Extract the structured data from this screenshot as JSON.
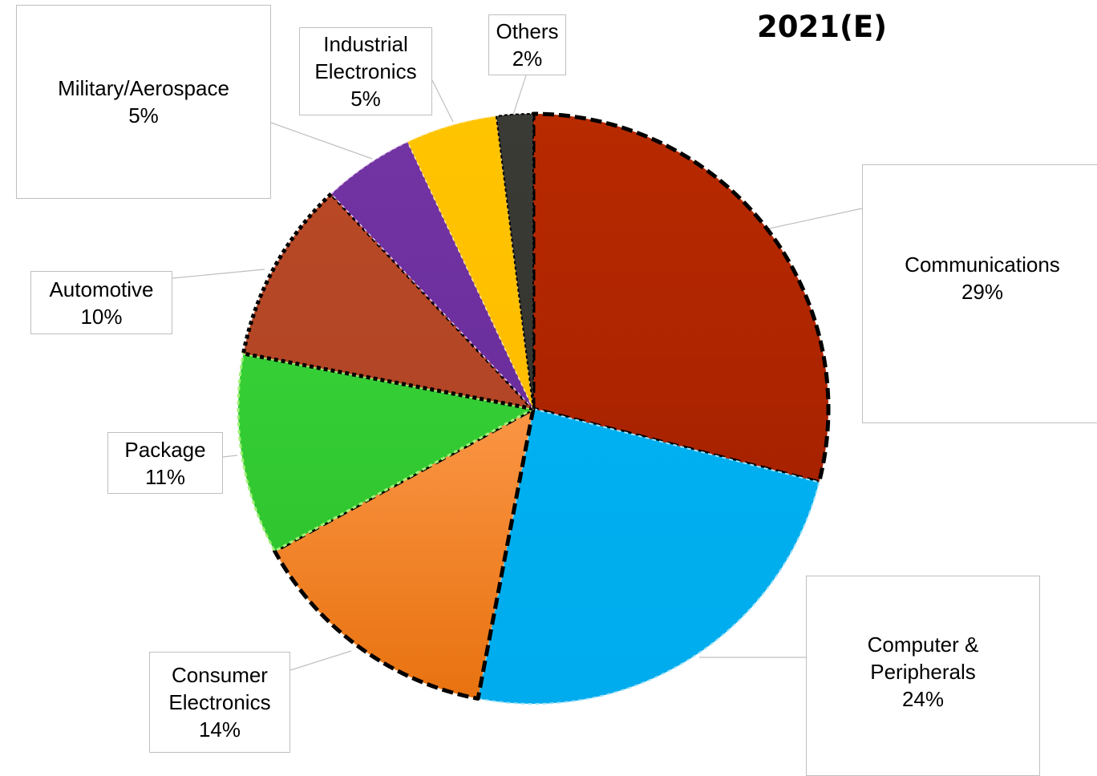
{
  "chart_data": {
    "type": "pie",
    "title": "2021(E)",
    "slices": [
      {
        "label": "Communications",
        "value": 29,
        "value_label": "29%",
        "color": "#b02500"
      },
      {
        "label": "Computer & Peripherals",
        "value": 24,
        "value_label": "24%",
        "color": "#00b0f0"
      },
      {
        "label": "Consumer Electronics",
        "value": 14,
        "value_label": "14%",
        "color": "#f78a30"
      },
      {
        "label": "Package",
        "value": 11,
        "value_label": "11%",
        "color": "#33cc33"
      },
      {
        "label": "Automotive",
        "value": 10,
        "value_label": "10%",
        "color": "#b94a28"
      },
      {
        "label": "Military/Aerospace",
        "value": 5,
        "value_label": "5%",
        "color": "#7030a0"
      },
      {
        "label": "Industrial Electronics",
        "value": 5,
        "value_label": "5%",
        "color": "#ffc000"
      },
      {
        "label": "Others",
        "value": 2,
        "value_label": "2%",
        "color": "#3a3a35"
      }
    ]
  }
}
